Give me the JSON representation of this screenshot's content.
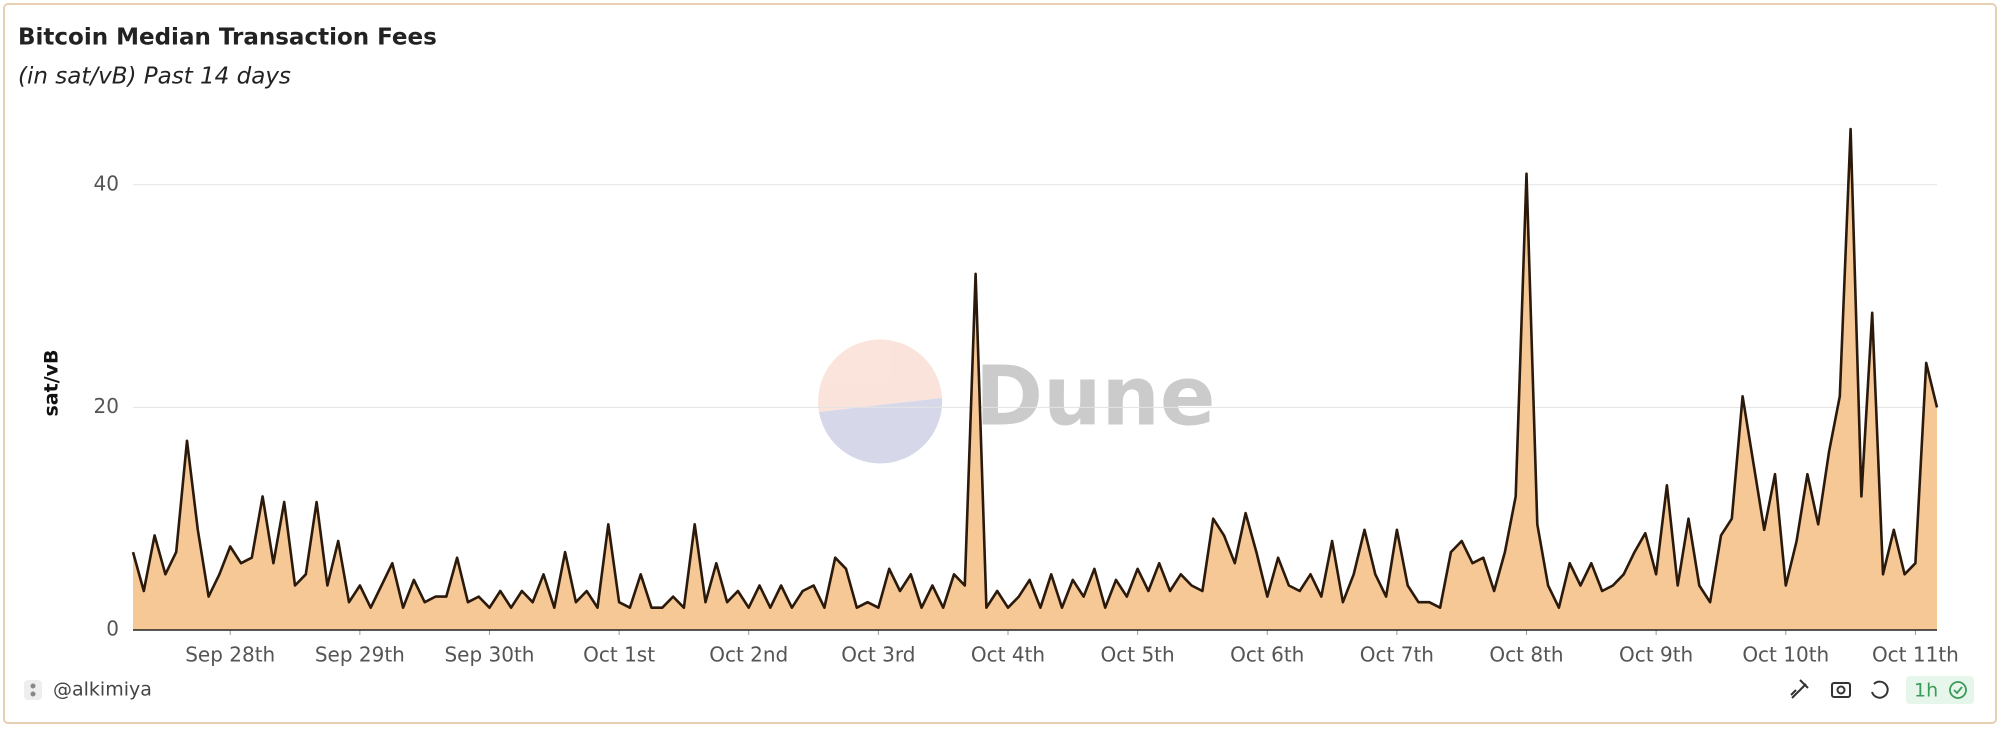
{
  "chart_data": {
    "type": "area",
    "title": "Bitcoin Median Transaction Fees",
    "subtitle": "(in sat/vB) Past 14 days",
    "y_label": "sat/vB",
    "color": "#f5c896",
    "line_color": "#2b1a0c",
    "grid": true,
    "xlim": [
      0,
      167
    ],
    "ylim": [
      0,
      46
    ],
    "yticks": [
      0,
      20,
      40
    ],
    "xticks": [
      {
        "value": 9,
        "label": "Sep 28th"
      },
      {
        "value": 21,
        "label": "Sep 29th"
      },
      {
        "value": 33,
        "label": "Sep 30th"
      },
      {
        "value": 45,
        "label": "Oct 1st"
      },
      {
        "value": 57,
        "label": "Oct 2nd"
      },
      {
        "value": 69,
        "label": "Oct 3rd"
      },
      {
        "value": 81,
        "label": "Oct 4th"
      },
      {
        "value": 93,
        "label": "Oct 5th"
      },
      {
        "value": 105,
        "label": "Oct 6th"
      },
      {
        "value": 117,
        "label": "Oct 7th"
      },
      {
        "value": 129,
        "label": "Oct 8th"
      },
      {
        "value": 141,
        "label": "Oct 9th"
      },
      {
        "value": 153,
        "label": "Oct 10th"
      },
      {
        "value": 165,
        "label": "Oct 11th"
      }
    ],
    "values": [
      7,
      3.5,
      8.5,
      5,
      7,
      17,
      9,
      3,
      5,
      7.5,
      6,
      6.5,
      12,
      6,
      11.5,
      4,
      5,
      11.5,
      4,
      8,
      2.5,
      4,
      2,
      4,
      6,
      2,
      4.5,
      2.5,
      3,
      3,
      6.5,
      2.5,
      3,
      2,
      3.5,
      2,
      3.5,
      2.5,
      5,
      2,
      7,
      2.5,
      3.5,
      2,
      9.5,
      2.5,
      2,
      5,
      2,
      2,
      3,
      2,
      9.5,
      2.5,
      6,
      2.5,
      3.5,
      2,
      4,
      2,
      4,
      2,
      3.5,
      4,
      2,
      6.5,
      5.5,
      2,
      2.5,
      2,
      5.5,
      3.5,
      5,
      2,
      4,
      2,
      5,
      4,
      32,
      2,
      3.5,
      2,
      3,
      4.5,
      2,
      5,
      2,
      4.5,
      3,
      5.5,
      2,
      4.5,
      3,
      5.5,
      3.5,
      6,
      3.5,
      5,
      4,
      3.5,
      10,
      8.5,
      6,
      10.5,
      7,
      3,
      6.5,
      4,
      3.5,
      5,
      3,
      8,
      2.5,
      5,
      9,
      5,
      3,
      9,
      4,
      2.5,
      2.5,
      2,
      7,
      8,
      6,
      6.5,
      3.5,
      7,
      12,
      41,
      9.5,
      4,
      2,
      6,
      4,
      6,
      3.5,
      4,
      5,
      7,
      8.7,
      5,
      13,
      4,
      10,
      4,
      2.5,
      8.5,
      10,
      21,
      15,
      9,
      14,
      4,
      8,
      14,
      9.5,
      16,
      21,
      45,
      12,
      28.5,
      5,
      9,
      5,
      6,
      24,
      20
    ]
  },
  "watermark": "Dune",
  "footer": {
    "author": "@alkimiya",
    "refresh": "1h"
  }
}
